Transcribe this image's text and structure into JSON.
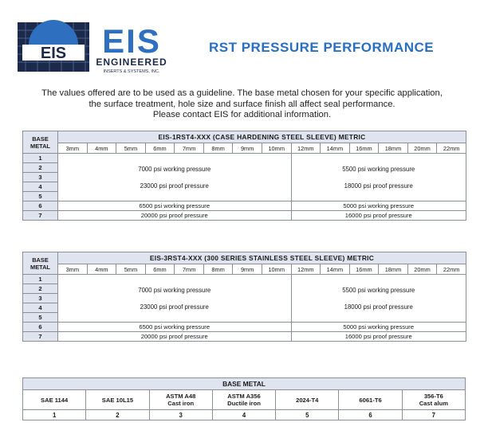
{
  "header": {
    "logo_letters": "EIS",
    "logo_brand": "ENGINEERED",
    "logo_sub": "INSERTS & SYSTEMS, INC.",
    "title": "RST PRESSURE PERFORMANCE"
  },
  "intro": {
    "line1": "The values offered are to be used as a guideline.  The base metal chosen for your specific application,",
    "line2": "the surface treatment, hole size and surface finish all affect seal performance.",
    "line3": "Please contact EIS for additional information."
  },
  "table1": {
    "base_label_1": "BASE",
    "base_label_2": "METAL",
    "title": "EIS-1RST4-XXX (CASE HARDENING STEEL SLEEVE)  METRIC",
    "sizes": [
      "3mm",
      "4mm",
      "5mm",
      "6mm",
      "7mm",
      "8mm",
      "9mm",
      "10mm",
      "12mm",
      "14mm",
      "16mm",
      "18mm",
      "20mm",
      "22mm"
    ],
    "metals": [
      "1",
      "2",
      "3",
      "4",
      "5",
      "6",
      "7"
    ],
    "groupA_left_working": "7000 psi working pressure",
    "groupA_left_proof": "23000 psi proof pressure",
    "groupA_right_working": "5500 psi working pressure",
    "groupA_right_proof": "18000 psi proof pressure",
    "groupB_left_working": "6500 psi working pressure",
    "groupB_left_proof": "20000 psi proof pressure",
    "groupB_right_working": "5000 psi working pressure",
    "groupB_right_proof": "16000 psi proof pressure"
  },
  "table2": {
    "base_label_1": "BASE",
    "base_label_2": "METAL",
    "title": "EIS-3RST4-XXX (300 SERIES STAINLESS STEEL SLEEVE)  METRIC",
    "sizes": [
      "3mm",
      "4mm",
      "5mm",
      "6mm",
      "7mm",
      "8mm",
      "9mm",
      "10mm",
      "12mm",
      "14mm",
      "16mm",
      "18mm",
      "20mm",
      "22mm"
    ],
    "metals": [
      "1",
      "2",
      "3",
      "4",
      "5",
      "6",
      "7"
    ],
    "groupA_left_working": "7000 psi working pressure",
    "groupA_left_proof": "23000 psi proof pressure",
    "groupA_right_working": "5500 psi working pressure",
    "groupA_right_proof": "18000 psi proof pressure",
    "groupB_left_working": "6500 psi working pressure",
    "groupB_left_proof": "20000 psi proof pressure",
    "groupB_right_working": "5000 psi working pressure",
    "groupB_right_proof": "16000 psi proof pressure"
  },
  "legend": {
    "title": "BASE METAL",
    "materials": [
      {
        "name1": "SAE 1144",
        "name2": "",
        "num": "1"
      },
      {
        "name1": "SAE 10L15",
        "name2": "",
        "num": "2"
      },
      {
        "name1": "ASTM A48",
        "name2": "Cast iron",
        "num": "3"
      },
      {
        "name1": "ASTM A356",
        "name2": "Ductile iron",
        "num": "4"
      },
      {
        "name1": "2024-T4",
        "name2": "",
        "num": "5"
      },
      {
        "name1": "6061-T6",
        "name2": "",
        "num": "6"
      },
      {
        "name1": "356-T6",
        "name2": "Cast alum",
        "num": "7"
      }
    ]
  },
  "colors": {
    "title_blue": "#2a6fbf",
    "header_fill": "#dfe4ee",
    "grid_line": "#8a8f99",
    "logo_dark": "#1b2a4a",
    "logo_blue": "#2f6fc0"
  }
}
